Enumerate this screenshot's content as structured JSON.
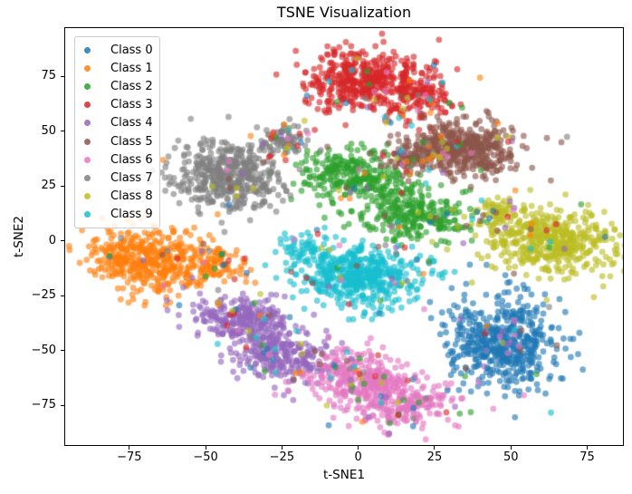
{
  "chart": {
    "title": "TSNE Visualization",
    "xlabel": "t-SNE1",
    "ylabel": "t-SNE2"
  },
  "legend": {
    "items": [
      {
        "label": "Class 0",
        "color": "#1f77b4"
      },
      {
        "label": "Class 1",
        "color": "#ff7f0e"
      },
      {
        "label": "Class 2",
        "color": "#2ca02c"
      },
      {
        "label": "Class 3",
        "color": "#d62728"
      },
      {
        "label": "Class 4",
        "color": "#9467bd"
      },
      {
        "label": "Class 5",
        "color": "#8c564b"
      },
      {
        "label": "Class 6",
        "color": "#e377c2"
      },
      {
        "label": "Class 7",
        "color": "#7f7f7f"
      },
      {
        "label": "Class 8",
        "color": "#bcbd22"
      },
      {
        "label": "Class 9",
        "color": "#17becf"
      }
    ]
  },
  "chart_data": {
    "type": "scatter",
    "title": "TSNE Visualization",
    "xlabel": "t-SNE1",
    "ylabel": "t-SNE2",
    "xlim": [
      -96.3,
      87
    ],
    "ylim": [
      -93.5,
      97.5
    ],
    "xticks": [
      {
        "value": -75,
        "label": "−75"
      },
      {
        "value": -50,
        "label": "−50"
      },
      {
        "value": -25,
        "label": "−25"
      },
      {
        "value": 0,
        "label": "0"
      },
      {
        "value": 25,
        "label": "25"
      },
      {
        "value": 50,
        "label": "50"
      },
      {
        "value": 75,
        "label": "75"
      }
    ],
    "yticks": [
      {
        "value": 75,
        "label": "75"
      },
      {
        "value": 50,
        "label": "50"
      },
      {
        "value": 25,
        "label": "25"
      },
      {
        "value": 0,
        "label": "0"
      },
      {
        "value": -25,
        "label": "−25"
      },
      {
        "value": -50,
        "label": "−50"
      },
      {
        "value": -75,
        "label": "−75"
      }
    ],
    "grid": false,
    "legend_position": "upper left",
    "marker_alpha": 0.62,
    "marker_radius_px": 3.4,
    "seed": 7,
    "noise_points": 340,
    "noise_sigma_scale": 1.35,
    "series": [
      {
        "name": "Class 0",
        "color": "#1f77b4",
        "components": [
          {
            "cx": 47,
            "cy": -46,
            "sx": 8.5,
            "sy": 11,
            "rot": 5,
            "n": 500
          }
        ]
      },
      {
        "name": "Class 1",
        "color": "#ff7f0e",
        "components": [
          {
            "cx": -68,
            "cy": -8,
            "sx": 10.5,
            "sy": 6.8,
            "rot": -8,
            "n": 470
          },
          {
            "cx": -46,
            "cy": -11,
            "sx": 4.5,
            "sy": 3.8,
            "rot": 0,
            "n": 70
          }
        ]
      },
      {
        "name": "Class 2",
        "color": "#2ca02c",
        "components": [
          {
            "cx": -2,
            "cy": 30,
            "sx": 9,
            "sy": 5.5,
            "rot": -10,
            "n": 270
          },
          {
            "cx": 18,
            "cy": 13,
            "sx": 9.5,
            "sy": 6,
            "rot": -12,
            "n": 270
          }
        ]
      },
      {
        "name": "Class 3",
        "color": "#d62728",
        "components": [
          {
            "cx": 2,
            "cy": 73,
            "sx": 9.5,
            "sy": 7,
            "rot": 0,
            "n": 430
          },
          {
            "cx": 20,
            "cy": 66,
            "sx": 6,
            "sy": 6,
            "rot": 0,
            "n": 130
          }
        ]
      },
      {
        "name": "Class 4",
        "color": "#9467bd",
        "components": [
          {
            "cx": -38,
            "cy": -35,
            "sx": 8,
            "sy": 5.5,
            "rot": -15,
            "n": 260
          },
          {
            "cx": -25,
            "cy": -52,
            "sx": 8,
            "sy": 5.5,
            "rot": -15,
            "n": 240
          }
        ]
      },
      {
        "name": "Class 5",
        "color": "#8c564b",
        "components": [
          {
            "cx": 34,
            "cy": 42,
            "sx": 9.5,
            "sy": 6,
            "rot": -8,
            "n": 450
          },
          {
            "cx": 17,
            "cy": 37,
            "sx": 4,
            "sy": 3.5,
            "rot": 0,
            "n": 60
          }
        ]
      },
      {
        "name": "Class 6",
        "color": "#e377c2",
        "components": [
          {
            "cx": 0,
            "cy": -62,
            "sx": 8,
            "sy": 6,
            "rot": 0,
            "n": 250
          },
          {
            "cx": 14,
            "cy": -73,
            "sx": 8.5,
            "sy": 6,
            "rot": 0,
            "n": 240
          }
        ]
      },
      {
        "name": "Class 7",
        "color": "#7f7f7f",
        "components": [
          {
            "cx": -42,
            "cy": 30,
            "sx": 8.5,
            "sy": 7.5,
            "rot": 0,
            "n": 450
          },
          {
            "cx": -24,
            "cy": 46,
            "sx": 4,
            "sy": 3.2,
            "rot": 0,
            "n": 75
          }
        ]
      },
      {
        "name": "Class 8",
        "color": "#bcbd22",
        "components": [
          {
            "cx": 63,
            "cy": 0,
            "sx": 10.5,
            "sy": 7,
            "rot": -8,
            "n": 470
          },
          {
            "cx": 46,
            "cy": 13,
            "sx": 4.5,
            "sy": 3,
            "rot": 0,
            "n": 60
          }
        ]
      },
      {
        "name": "Class 9",
        "color": "#17becf",
        "components": [
          {
            "cx": 1,
            "cy": -16,
            "sx": 10,
            "sy": 7,
            "rot": 0,
            "n": 480
          },
          {
            "cx": -16,
            "cy": -4,
            "sx": 4.5,
            "sy": 3.5,
            "rot": -20,
            "n": 60
          }
        ]
      }
    ]
  }
}
